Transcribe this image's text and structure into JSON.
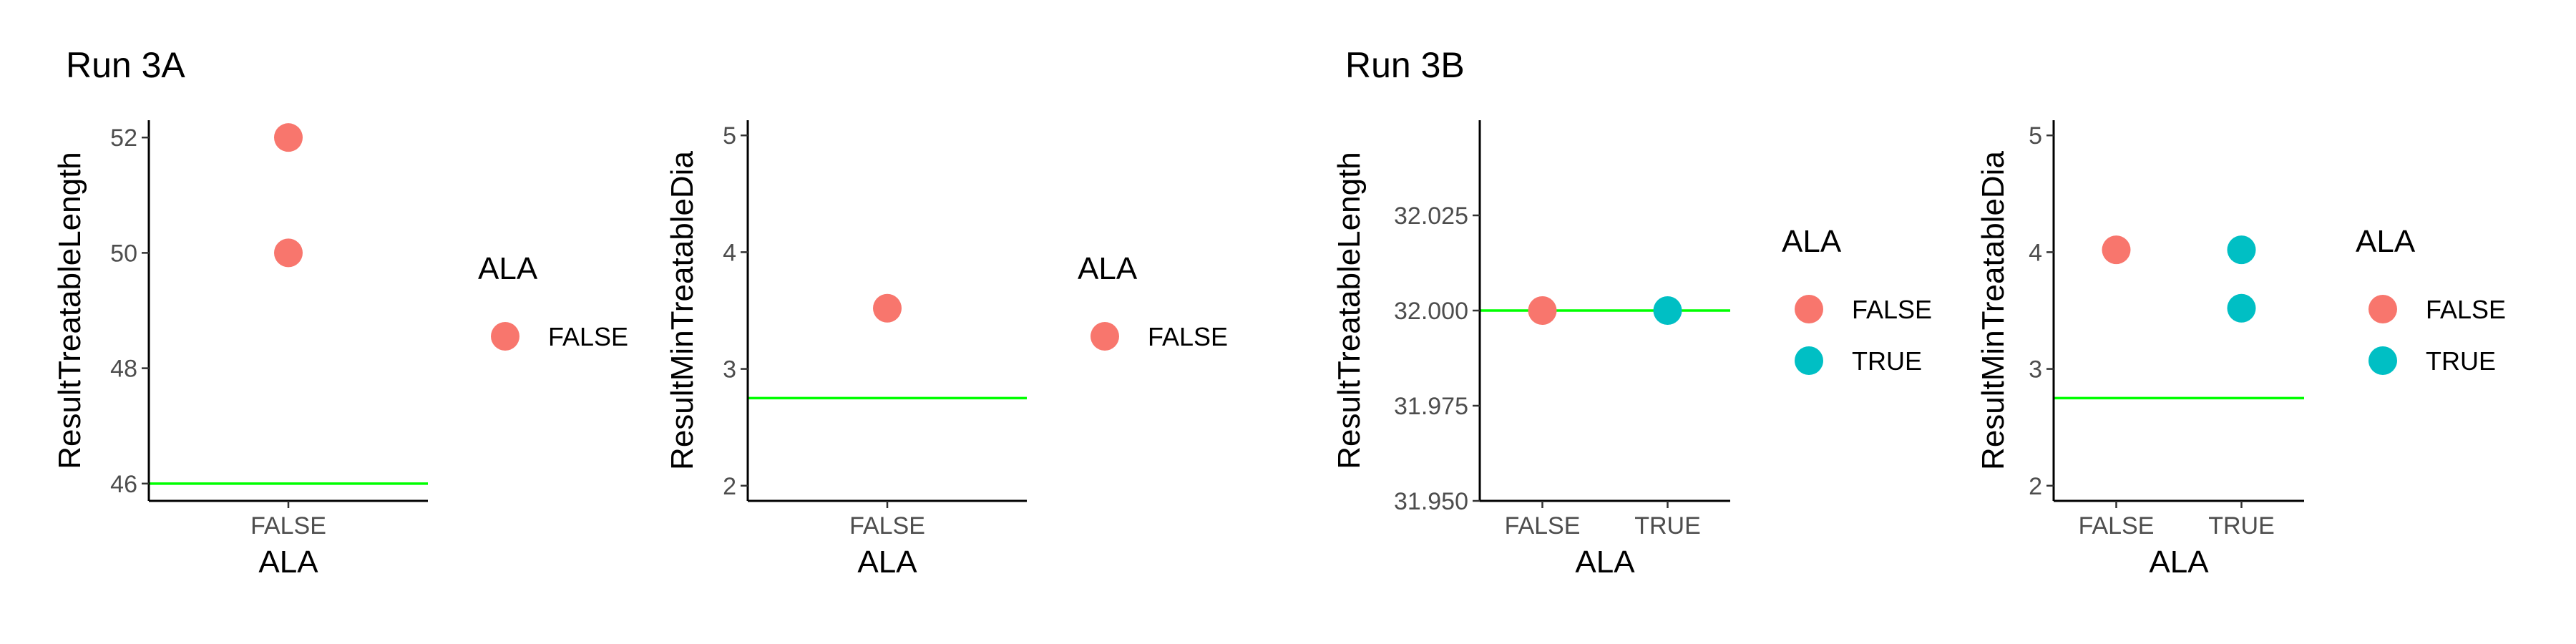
{
  "groups": [
    {
      "title": "Run 3A"
    },
    {
      "title": "Run 3B"
    }
  ],
  "colors": {
    "FALSE": "#F8766D",
    "TRUE": "#00BFC4",
    "reference_line": "#00FF00"
  },
  "chart_data": [
    {
      "type": "scatter",
      "group": "Run 3A",
      "xlabel": "ALA",
      "ylabel": "ResultTreatableLength",
      "categories": [
        "FALSE"
      ],
      "yticks": [
        46,
        48,
        50,
        52
      ],
      "ylim": [
        45.7,
        52.3
      ],
      "points": [
        {
          "x": "FALSE",
          "y": 52
        },
        {
          "x": "FALSE",
          "y": 50
        }
      ],
      "reference_line_y": 46,
      "legend": {
        "title": "ALA",
        "entries": [
          "FALSE"
        ]
      }
    },
    {
      "type": "scatter",
      "group": "Run 3A",
      "xlabel": "ALA",
      "ylabel": "ResultMinTreatableDia",
      "categories": [
        "FALSE"
      ],
      "yticks": [
        2,
        3,
        4,
        5
      ],
      "ylim": [
        1.87,
        5.13
      ],
      "points": [
        {
          "x": "FALSE",
          "y": 3.52
        }
      ],
      "reference_line_y": 2.75,
      "legend": {
        "title": "ALA",
        "entries": [
          "FALSE"
        ]
      }
    },
    {
      "type": "scatter",
      "group": "Run 3B",
      "xlabel": "ALA",
      "ylabel": "ResultTreatableLength",
      "categories": [
        "FALSE",
        "TRUE"
      ],
      "yticks": [
        31.95,
        31.975,
        32.0,
        32.025
      ],
      "ytick_labels": [
        "31.950",
        "31.975",
        "32.000",
        "32.025"
      ],
      "ylim": [
        31.95,
        32.05
      ],
      "points": [
        {
          "x": "FALSE",
          "y": 32.0
        },
        {
          "x": "TRUE",
          "y": 32.0
        }
      ],
      "reference_line_y": 32.0,
      "legend": {
        "title": "ALA",
        "entries": [
          "FALSE",
          "TRUE"
        ]
      }
    },
    {
      "type": "scatter",
      "group": "Run 3B",
      "xlabel": "ALA",
      "ylabel": "ResultMinTreatableDia",
      "categories": [
        "FALSE",
        "TRUE"
      ],
      "yticks": [
        2,
        3,
        4,
        5
      ],
      "ylim": [
        1.87,
        5.13
      ],
      "points": [
        {
          "x": "FALSE",
          "y": 4.02
        },
        {
          "x": "TRUE",
          "y": 4.02
        },
        {
          "x": "TRUE",
          "y": 3.52
        }
      ],
      "reference_line_y": 2.75,
      "legend": {
        "title": "ALA",
        "entries": [
          "FALSE",
          "TRUE"
        ]
      }
    }
  ]
}
